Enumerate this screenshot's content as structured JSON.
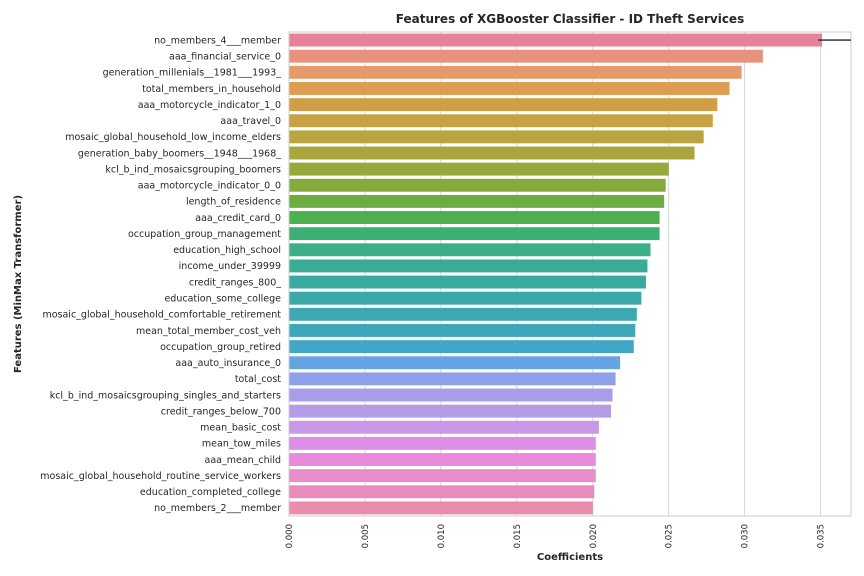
{
  "chart_data": {
    "type": "bar",
    "orientation": "horizontal",
    "title": "Features of XGBooster Classifier - ID Theft Services",
    "xlabel": "Coefficients",
    "ylabel": "Features (MinMax Transformer)",
    "xlim": [
      0.0,
      0.037
    ],
    "xticks": [
      "0.000",
      "0.005",
      "0.010",
      "0.015",
      "0.020",
      "0.025",
      "0.030",
      "0.035"
    ],
    "grid": true,
    "categories": [
      "no_members_4___member",
      "aaa_financial_service_0",
      "generation_millenials__1981___1993_",
      "total_members_in_household",
      "aaa_motorcycle_indicator_1_0",
      "aaa_travel_0",
      "mosaic_global_household_low_income_elders",
      "generation_baby_boomers__1948___1968_",
      "kcl_b_ind_mosaicsgrouping_boomers",
      "aaa_motorcycle_indicator_0_0",
      "length_of_residence",
      "aaa_credit_card_0",
      "occupation_group_management",
      "education_high_school",
      "income_under_39999",
      "credit_ranges_800_",
      "education_some_college",
      "mosaic_global_household_comfortable_retirement",
      "mean_total_member_cost_veh",
      "occupation_group_retired",
      "aaa_auto_insurance_0",
      "total_cost",
      "kcl_b_ind_mosaicsgrouping_singles_and_starters",
      "credit_ranges_below_700",
      "mean_basic_cost",
      "mean_tow_miles",
      "aaa_mean_child",
      "mosaic_global_household_routine_service_workers",
      "education_completed_college",
      "no_members_2___member"
    ],
    "values": [
      0.0351,
      0.0312,
      0.0298,
      0.029,
      0.0282,
      0.0279,
      0.0273,
      0.0267,
      0.025,
      0.0248,
      0.0247,
      0.0244,
      0.0244,
      0.0238,
      0.0236,
      0.0235,
      0.0232,
      0.0229,
      0.0228,
      0.0227,
      0.0218,
      0.0215,
      0.0213,
      0.0212,
      0.0204,
      0.0202,
      0.0202,
      0.0202,
      0.0201,
      0.02
    ],
    "colors": [
      "#e8829a",
      "#e8917e",
      "#e59a6a",
      "#de9c52",
      "#d19e48",
      "#c6a244",
      "#baa43f",
      "#a8a63c",
      "#97a83a",
      "#84ab3b",
      "#6bad3f",
      "#4cb051",
      "#3cb074",
      "#39ae88",
      "#38ac95",
      "#39aa9f",
      "#3aa9a8",
      "#3ca8b1",
      "#3ea8bb",
      "#41a7c6",
      "#64a4e2",
      "#8ea0e8",
      "#a79de9",
      "#b79be9",
      "#c997e8",
      "#dd8ee6",
      "#e88bdd",
      "#e88ccc",
      "#e88cbc",
      "#e88dac"
    ],
    "reference_line": 0.0351
  }
}
